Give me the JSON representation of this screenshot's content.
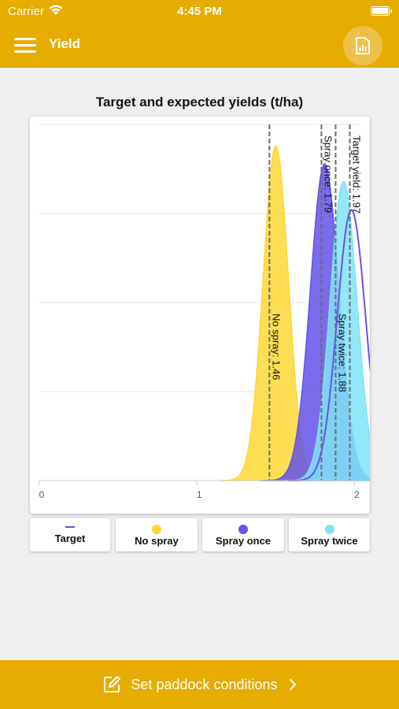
{
  "status": {
    "carrier": "Carrier",
    "time": "4:45 PM"
  },
  "nav": {
    "title": "Yield",
    "menu_icon": "hamburger-icon",
    "report_icon": "report-chart-icon"
  },
  "chart_data": {
    "type": "area",
    "title": "Target and expected yields (t/ha)",
    "xlabel": "",
    "ylabel": "",
    "xlim": [
      0,
      2.2
    ],
    "x_ticks": [
      "0",
      "1",
      "2"
    ],
    "grid": true,
    "legend": "bottom",
    "series": [
      {
        "name": "No spray",
        "color": "#fdd835",
        "style": "filled",
        "mean": 1.5,
        "sd": 0.08,
        "peak": 0.94
      },
      {
        "name": "Spray once",
        "color": "#6452e9",
        "style": "filled",
        "mean": 1.81,
        "sd": 0.09,
        "peak": 0.89
      },
      {
        "name": "Spray twice",
        "color": "#7fe3f7",
        "style": "filled",
        "mean": 1.93,
        "sd": 0.085,
        "peak": 0.84
      },
      {
        "name": "Target",
        "color": "#6452e9",
        "style": "line",
        "mean": 1.98,
        "sd": 0.09,
        "peak": 0.76
      }
    ],
    "markers": [
      {
        "label": "No spray: 1.46",
        "x": 1.46,
        "label_position": "middle"
      },
      {
        "label": "Spray once: 1.79",
        "x": 1.79,
        "label_position": "top"
      },
      {
        "label": "Spray twice: 1.88",
        "x": 1.88,
        "label_position": "middle"
      },
      {
        "label": "Target yield: 1.97",
        "x": 1.97,
        "label_position": "top"
      }
    ]
  },
  "legend": [
    {
      "label": "Target",
      "color": "#6452e9",
      "shape": "line"
    },
    {
      "label": "No spray",
      "color": "#fdd835",
      "shape": "dot"
    },
    {
      "label": "Spray once",
      "color": "#6452e9",
      "shape": "dot"
    },
    {
      "label": "Spray twice",
      "color": "#7fe3f7",
      "shape": "dot"
    }
  ],
  "bottom_action": {
    "label": "Set paddock conditions",
    "icon": "edit-icon",
    "chevron": "chevron-right-icon"
  }
}
